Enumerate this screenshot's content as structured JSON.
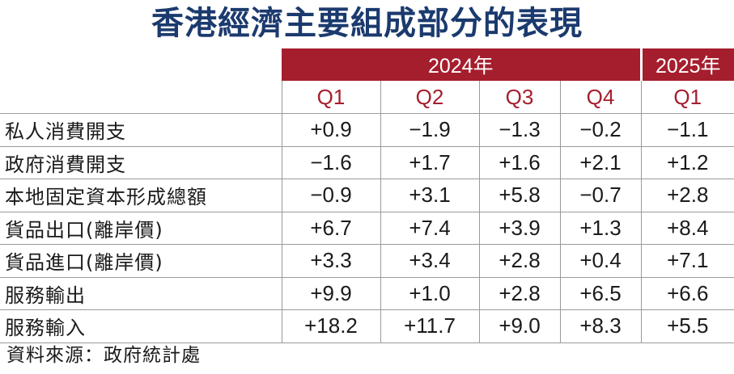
{
  "title": "香港經濟主要組成部分的表現",
  "header": {
    "year_2024": "2024年",
    "year_2025": "2025年",
    "quarters": [
      "Q1",
      "Q2",
      "Q3",
      "Q4",
      "Q1"
    ]
  },
  "rows": [
    {
      "label": "私人消費開支",
      "values": [
        "+0.9",
        "−1.9",
        "−1.3",
        "−0.2",
        "−1.1"
      ]
    },
    {
      "label": "政府消費開支",
      "values": [
        "−1.6",
        "+1.7",
        "+1.6",
        "+2.1",
        "+1.2"
      ]
    },
    {
      "label": "本地固定資本形成總額",
      "values": [
        "−0.9",
        "+3.1",
        "+5.8",
        "−0.7",
        "+2.8"
      ]
    },
    {
      "label": "貨品出口(離岸價)",
      "values": [
        "+6.7",
        "+7.4",
        "+3.9",
        "+1.3",
        "+8.4"
      ]
    },
    {
      "label": "貨品進口(離岸價)",
      "values": [
        "+3.3",
        "+3.4",
        "+2.8",
        "+0.4",
        "+7.1"
      ]
    },
    {
      "label": "服務輸出",
      "values": [
        "+9.9",
        "+1.0",
        "+2.8",
        "+6.5",
        "+6.6"
      ]
    },
    {
      "label": "服務輸入",
      "values": [
        "+18.2",
        "+11.7",
        "+9.0",
        "+8.3",
        "+5.5"
      ]
    }
  ],
  "source": "資料來源：政府統計處",
  "colors": {
    "title": "#1b3a6e",
    "header_band": "#a51e2d",
    "quarter_text": "#a51e2d"
  }
}
